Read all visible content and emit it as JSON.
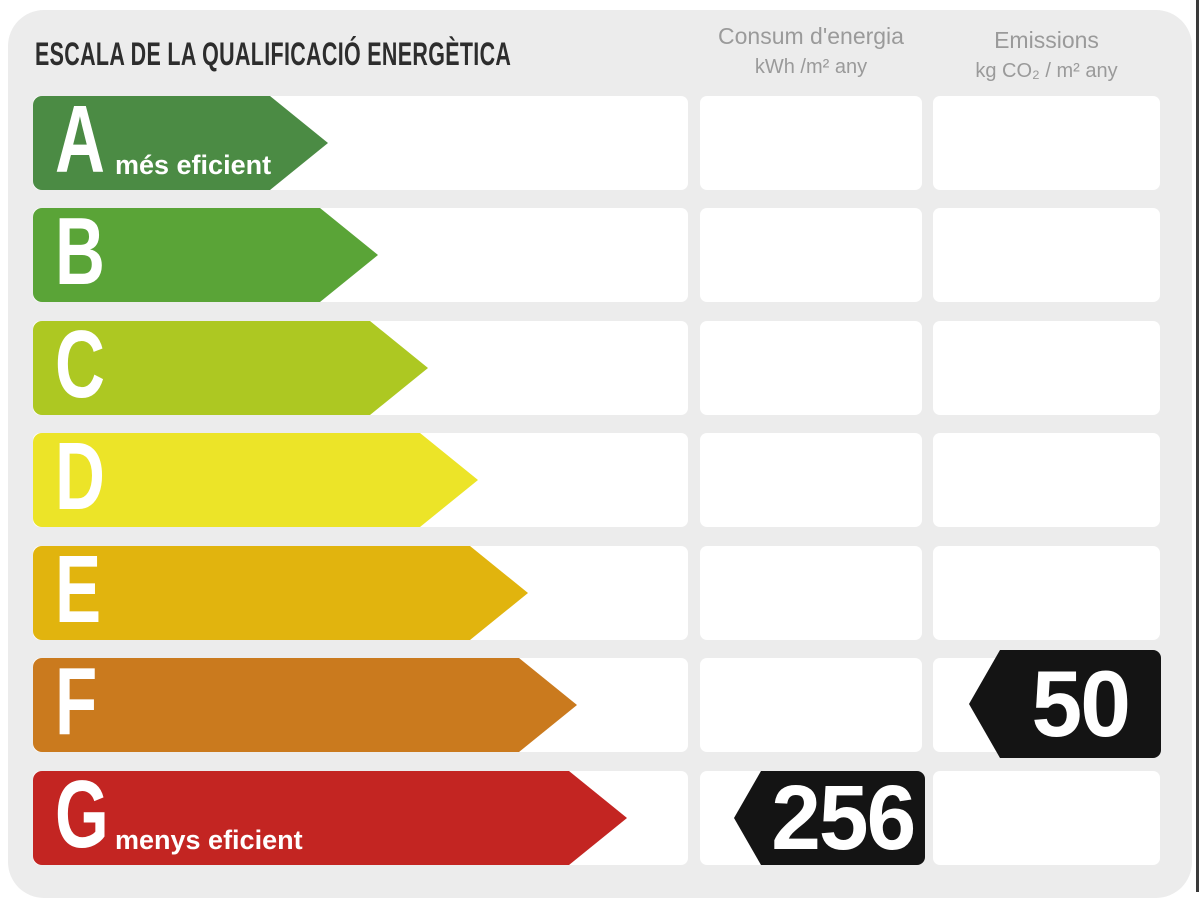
{
  "title": "ESCALA DE LA QUALIFICACIÓ ENERGÈTICA",
  "columns": {
    "consum": {
      "label": "Consum d'energia",
      "unit": "kWh /m² any"
    },
    "emissions": {
      "label": "Emissions",
      "unit": "kg CO₂ / m² any"
    }
  },
  "scale": {
    "rows": [
      {
        "letter": "A",
        "sublabel": "més eficient",
        "color": "#4b8b44",
        "arrow_width": 295
      },
      {
        "letter": "B",
        "sublabel": "",
        "color": "#5aa437",
        "arrow_width": 345
      },
      {
        "letter": "C",
        "sublabel": "",
        "color": "#adc822",
        "arrow_width": 395
      },
      {
        "letter": "D",
        "sublabel": "",
        "color": "#ece428",
        "arrow_width": 445
      },
      {
        "letter": "E",
        "sublabel": "",
        "color": "#e1b40e",
        "arrow_width": 495
      },
      {
        "letter": "F",
        "sublabel": "",
        "color": "#ca7a1e",
        "arrow_width": 544
      },
      {
        "letter": "G",
        "sublabel": "menys eficient",
        "color": "#c32522",
        "arrow_width": 594
      }
    ]
  },
  "values": {
    "consum": {
      "value": "256",
      "rating": "G",
      "color": "#141414"
    },
    "emissions": {
      "value": "50",
      "rating": "F",
      "color": "#141414"
    }
  },
  "panel_color": "#ececec",
  "chart_data": {
    "type": "bar",
    "title": "ESCALA DE LA QUALIFICACIÓ ENERGÈTICA",
    "categories": [
      "A",
      "B",
      "C",
      "D",
      "E",
      "F",
      "G"
    ],
    "category_notes": {
      "A": "més eficient",
      "G": "menys eficient"
    },
    "bar_colors": [
      "#4b8b44",
      "#5aa437",
      "#adc822",
      "#ece428",
      "#e1b40e",
      "#ca7a1e",
      "#c32522"
    ],
    "bar_relative_lengths": [
      295,
      345,
      395,
      445,
      495,
      544,
      594
    ],
    "columns": [
      {
        "name": "Consum d'energia",
        "unit": "kWh /m² any",
        "value": 256,
        "rating": "G"
      },
      {
        "name": "Emissions",
        "unit": "kg CO₂ / m² any",
        "value": 50,
        "rating": "F"
      }
    ],
    "legend_position": "none",
    "grid": false
  }
}
